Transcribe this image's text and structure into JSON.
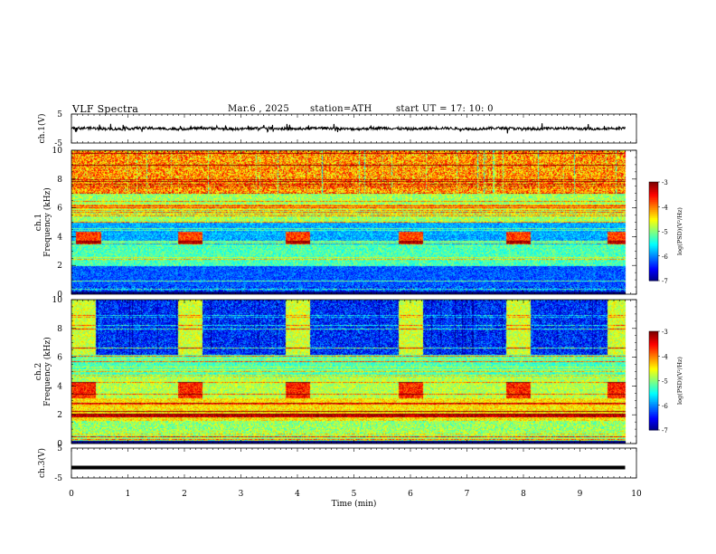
{
  "header": {
    "title": "VLF  Spectra",
    "date": "Mar.6  , 2025",
    "station": "station=ATH",
    "start": "start  UT  =   17: 10: 0"
  },
  "chart_data": [
    {
      "type": "line",
      "panel": "channel-1-waveform",
      "ylabel": "ch.1(V)",
      "ylim": [
        -5,
        5
      ],
      "yticks": [
        "5",
        "-5"
      ],
      "xlim": [
        0,
        10
      ],
      "series": [
        {
          "values_note": "",
          "mean": 0.0,
          "noise_amplitude": 1.0,
          "x_end": 9.8
        }
      ],
      "color": "#000000"
    },
    {
      "type": "heatmap",
      "panel": "channel-1-spectrogram",
      "ylabel": "ch.1\nFrequency  (kHz)",
      "ylim": [
        0,
        10
      ],
      "yticks": [
        "0",
        "2",
        "4",
        "6",
        "8",
        "10"
      ],
      "xlim": [
        0,
        10
      ],
      "x_end": 9.8,
      "bursts_min": [
        0.3,
        2.1,
        4.0,
        6.0,
        7.9,
        9.7
      ],
      "colorbar": {
        "label": "log(PSD)(V²/Hz)",
        "ticks": [
          "-3",
          "-4",
          "-5",
          "-6",
          "-7"
        ],
        "range": [
          -7,
          -3
        ]
      }
    },
    {
      "type": "heatmap",
      "panel": "channel-2-spectrogram",
      "ylabel": "ch.2\nFrequency  (kHz)",
      "ylim": [
        0,
        10
      ],
      "yticks": [
        "0",
        "2",
        "4",
        "6",
        "8",
        "10"
      ],
      "xlim": [
        0,
        10
      ],
      "x_end": 9.8,
      "bursts_min": [
        0.2,
        2.1,
        4.0,
        6.0,
        7.9,
        9.7
      ],
      "colorbar": {
        "label": "log(PSD)(V²/Hz)",
        "ticks": [
          "-3",
          "-4",
          "-5",
          "-6",
          "-7"
        ],
        "range": [
          -7,
          -3
        ]
      }
    },
    {
      "type": "line",
      "panel": "channel-3-waveform",
      "ylabel": "ch.3(V)",
      "ylim": [
        -5,
        5
      ],
      "yticks": [
        "5",
        "-5"
      ],
      "xlim": [
        0,
        10
      ],
      "series": [
        {
          "mean": -1.5,
          "x_end": 9.8
        }
      ],
      "xlabel": "Time  (min)",
      "xticks": [
        "0",
        "1",
        "2",
        "3",
        "4",
        "5",
        "6",
        "7",
        "8",
        "9",
        "10"
      ]
    }
  ],
  "colors": {
    "jet_low": "#00007f",
    "jet_high": "#7f0000",
    "trace": "#000000"
  }
}
